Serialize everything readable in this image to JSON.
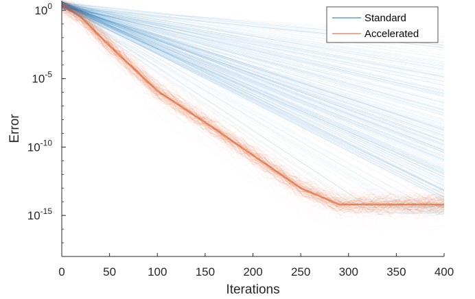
{
  "chart_data": {
    "type": "line",
    "xlabel": "Iterations",
    "ylabel": "Error",
    "xlim": [
      0,
      400
    ],
    "ylim_log10": [
      -18,
      0.7
    ],
    "y_scale": "log",
    "grid": false,
    "legend_position": "top-right",
    "x_ticks": [
      0,
      50,
      100,
      150,
      200,
      250,
      300,
      350,
      400
    ],
    "y_ticks": [
      {
        "exp": 0,
        "base": "10",
        "power": "0"
      },
      {
        "exp": -5,
        "base": "10",
        "power": "-5"
      },
      {
        "exp": -10,
        "base": "10",
        "power": "-10"
      },
      {
        "exp": -15,
        "base": "10",
        "power": "-15"
      }
    ],
    "series": [
      {
        "name": "Standard",
        "color": "#0072BD",
        "note_x": [
          0,
          400
        ],
        "start_log10_error": 0.4,
        "end_log10_error_range_at_x400": [
          -15.2,
          -1.5
        ]
      },
      {
        "name": "Accelerated",
        "color": "#D95319",
        "x": [
          0,
          20,
          50,
          100,
          150,
          200,
          250,
          290,
          300,
          350,
          400
        ],
        "log10_error": [
          0.4,
          -0.5,
          -2.6,
          -5.9,
          -8.2,
          -10.6,
          -13.0,
          -14.2,
          -14.2,
          -14.2,
          -14.2
        ]
      }
    ]
  }
}
